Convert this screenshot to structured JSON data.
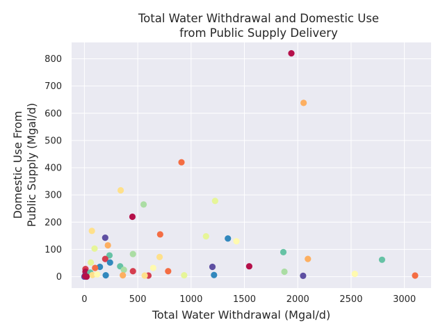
{
  "chart_data": {
    "type": "scatter",
    "title": [
      "Total Water Withdrawal and Domestic Use",
      "from Public Supply Delivery"
    ],
    "xlabel": "Total Water Withdrawal (Mgal/d)",
    "ylabel": [
      "Domestic Use From",
      "Public Supply (Mgal/d)"
    ],
    "xlim": [
      -120,
      3250
    ],
    "ylim": [
      -42,
      860
    ],
    "xticks": [
      0,
      500,
      1000,
      1500,
      2000,
      2500,
      3000
    ],
    "yticks": [
      0,
      100,
      200,
      300,
      400,
      500,
      600,
      700,
      800
    ],
    "grid": true,
    "colormap": "Spectral",
    "colors": {
      "background": "#eaeaf2",
      "grid": "#ffffff"
    },
    "points": [
      {
        "x": 1940,
        "y": 820,
        "color": "#b5104a"
      },
      {
        "x": 2055,
        "y": 638,
        "color": "#fdaf61"
      },
      {
        "x": 910,
        "y": 420,
        "color": "#f46d43"
      },
      {
        "x": 340,
        "y": 317,
        "color": "#fee08b"
      },
      {
        "x": 1225,
        "y": 278,
        "color": "#e6f598"
      },
      {
        "x": 555,
        "y": 265,
        "color": "#abdda4"
      },
      {
        "x": 450,
        "y": 220,
        "color": "#b5104a"
      },
      {
        "x": 70,
        "y": 168,
        "color": "#fee08b"
      },
      {
        "x": 710,
        "y": 155,
        "color": "#f46d43"
      },
      {
        "x": 1140,
        "y": 148,
        "color": "#e6f598"
      },
      {
        "x": 195,
        "y": 143,
        "color": "#5e4fa2"
      },
      {
        "x": 1345,
        "y": 140,
        "color": "#3288bd"
      },
      {
        "x": 1425,
        "y": 130,
        "color": "#fffaaf"
      },
      {
        "x": 220,
        "y": 115,
        "color": "#fdaf61"
      },
      {
        "x": 95,
        "y": 103,
        "color": "#e6f598"
      },
      {
        "x": 1865,
        "y": 90,
        "color": "#66c2a5"
      },
      {
        "x": 455,
        "y": 83,
        "color": "#abdda4"
      },
      {
        "x": 235,
        "y": 78,
        "color": "#66c2a5"
      },
      {
        "x": 705,
        "y": 72,
        "color": "#fee08b"
      },
      {
        "x": 2095,
        "y": 65,
        "color": "#fdaf61"
      },
      {
        "x": 195,
        "y": 65,
        "color": "#d53e4f"
      },
      {
        "x": 2790,
        "y": 62,
        "color": "#66c2a5"
      },
      {
        "x": 240,
        "y": 52,
        "color": "#3288bd"
      },
      {
        "x": 60,
        "y": 52,
        "color": "#e6f598"
      },
      {
        "x": 1545,
        "y": 38,
        "color": "#b5104a"
      },
      {
        "x": 1200,
        "y": 36,
        "color": "#5e4fa2"
      },
      {
        "x": 145,
        "y": 36,
        "color": "#3288bd"
      },
      {
        "x": 335,
        "y": 38,
        "color": "#66c2a5"
      },
      {
        "x": 645,
        "y": 32,
        "color": "#fffaaf"
      },
      {
        "x": 100,
        "y": 32,
        "color": "#f46d43"
      },
      {
        "x": 10,
        "y": 28,
        "color": "#d53e4f"
      },
      {
        "x": 370,
        "y": 25,
        "color": "#abdda4"
      },
      {
        "x": 455,
        "y": 20,
        "color": "#d53e4f"
      },
      {
        "x": 785,
        "y": 20,
        "color": "#f46d43"
      },
      {
        "x": 1875,
        "y": 18,
        "color": "#abdda4"
      },
      {
        "x": 10,
        "y": 18,
        "color": "#b5104a"
      },
      {
        "x": 55,
        "y": 15,
        "color": "#66c2a5"
      },
      {
        "x": 2535,
        "y": 10,
        "color": "#fffaaf"
      },
      {
        "x": 1215,
        "y": 6,
        "color": "#3288bd"
      },
      {
        "x": 935,
        "y": 5,
        "color": "#e6f598"
      },
      {
        "x": 360,
        "y": 5,
        "color": "#fdaf61"
      },
      {
        "x": 200,
        "y": 5,
        "color": "#3288bd"
      },
      {
        "x": 600,
        "y": 4,
        "color": "#d53e4f"
      },
      {
        "x": 565,
        "y": 4,
        "color": "#fee08b"
      },
      {
        "x": 3100,
        "y": 4,
        "color": "#f46d43"
      },
      {
        "x": 2050,
        "y": 3,
        "color": "#5e4fa2"
      },
      {
        "x": 75,
        "y": 6,
        "color": "#fee08b"
      },
      {
        "x": 120,
        "y": 8,
        "color": "#fffaaf"
      },
      {
        "x": 5,
        "y": 3,
        "color": "#5e4fa2"
      },
      {
        "x": 15,
        "y": 1,
        "color": "#3288bd"
      },
      {
        "x": 0,
        "y": 0,
        "color": "#5e4fa2"
      },
      {
        "x": 20,
        "y": 0,
        "color": "#b5104a"
      },
      {
        "x": 8,
        "y": 2,
        "color": "#b5104a"
      }
    ]
  }
}
